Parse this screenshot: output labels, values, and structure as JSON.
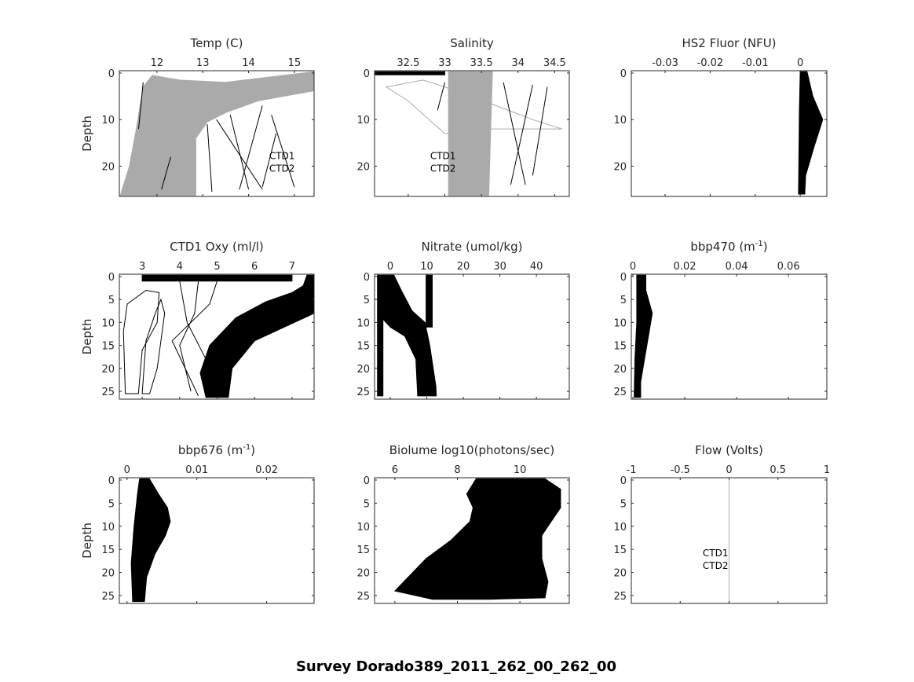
{
  "figure_title": "Survey Dorado389_2011_262_00_262_00",
  "colors": {
    "ctd1": "#000000",
    "ctd2": "#aaaaaa",
    "axis": "#262626"
  },
  "chart_data": [
    {
      "type": "scatter",
      "title": "Temp (C)",
      "title_sup": "",
      "title_end": "",
      "ylabel": "Depth",
      "xlim": [
        11.18,
        15.43
      ],
      "ylim": [
        -0.5,
        26.5
      ],
      "xticks": [
        "12",
        "13",
        "14",
        "15"
      ],
      "yticks": [
        "0",
        "10",
        "20"
      ],
      "legend": [
        "CTD1",
        "CTD2"
      ],
      "legend_pos": [
        14.45,
        18.5
      ],
      "series": [
        {
          "name": "CTD2",
          "color": "#aaaaaa",
          "envelope": [
            [
              11.2,
              26.3
            ],
            [
              11.4,
              20
            ],
            [
              11.55,
              12
            ],
            [
              11.7,
              3
            ],
            [
              11.9,
              0.5
            ],
            [
              12.5,
              1.5
            ],
            [
              13.5,
              2
            ],
            [
              15.43,
              -0.3
            ],
            [
              15.43,
              3.8
            ],
            [
              14.2,
              6
            ],
            [
              13.5,
              8.5
            ],
            [
              13.1,
              10.5
            ],
            [
              12.85,
              14
            ],
            [
              12.85,
              26.3
            ]
          ]
        },
        {
          "name": "CTD1",
          "color": "#000000",
          "lines": [
            [
              [
                13.1,
                11
              ],
              [
                13.2,
                25.5
              ]
            ],
            [
              [
                13.3,
                10
              ],
              [
                14.3,
                25
              ]
            ],
            [
              [
                13.6,
                9
              ],
              [
                14.0,
                25
              ]
            ],
            [
              [
                14.3,
                7
              ],
              [
                13.8,
                25
              ]
            ],
            [
              [
                14.5,
                9
              ],
              [
                15.0,
                24.5
              ]
            ],
            [
              [
                14.3,
                24.5
              ],
              [
                14.6,
                13
              ]
            ],
            [
              [
                11.7,
                2
              ],
              [
                11.6,
                12
              ]
            ],
            [
              [
                12.3,
                18
              ],
              [
                12.1,
                25
              ]
            ]
          ]
        }
      ]
    },
    {
      "type": "scatter",
      "title": "Salinity",
      "title_sup": "",
      "title_end": "",
      "ylabel": "",
      "xlim": [
        32.04,
        34.7
      ],
      "ylim": [
        -0.5,
        26.5
      ],
      "xticks": [
        "32.5",
        "33",
        "33.5",
        "34",
        "34.5"
      ],
      "yticks": [
        "0",
        "10",
        "20"
      ],
      "legend": [
        "CTD1",
        "CTD2"
      ],
      "legend_pos": [
        32.8,
        18.5
      ],
      "series": [
        {
          "name": "CTD2",
          "color": "#aaaaaa",
          "envelope": [
            [
              33.05,
              -0.3
            ],
            [
              33.65,
              -0.3
            ],
            [
              33.6,
              26.3
            ],
            [
              33.05,
              26.3
            ]
          ]
        },
        {
          "name": "CTD2",
          "color": "#aaaaaa",
          "outline": [
            [
              32.2,
              3
            ],
            [
              32.7,
              1.5
            ],
            [
              33.2,
              4
            ],
            [
              34.2,
              10
            ],
            [
              34.6,
              12
            ],
            [
              33.6,
              12
            ],
            [
              33.0,
              13
            ],
            [
              32.5,
              6
            ]
          ]
        },
        {
          "name": "CTD1",
          "color": "#000000",
          "envelope": [
            [
              32.05,
              -0.3
            ],
            [
              33.0,
              -0.3
            ],
            [
              33.0,
              0.4
            ],
            [
              32.05,
              0.4
            ]
          ]
        },
        {
          "name": "CTD1",
          "color": "#000000",
          "lines": [
            [
              [
                33.8,
                2
              ],
              [
                34.1,
                24
              ]
            ],
            [
              [
                34.2,
                2.5
              ],
              [
                33.9,
                24
              ]
            ],
            [
              [
                34.4,
                3
              ],
              [
                34.2,
                22
              ]
            ],
            [
              [
                33.0,
                2
              ],
              [
                32.9,
                8
              ]
            ]
          ]
        }
      ]
    },
    {
      "type": "scatter",
      "title": "HS2 Fluor (NFU)",
      "title_sup": "",
      "title_end": "",
      "ylabel": "",
      "xlim": [
        -0.0375,
        0.0059
      ],
      "ylim": [
        -0.5,
        26.5
      ],
      "xticks": [
        "-0.03",
        "-0.02",
        "-0.01",
        "0"
      ],
      "yticks": [
        "0",
        "10",
        "20"
      ],
      "legend": [],
      "series": [
        {
          "name": "CTD1",
          "color": "#000000",
          "envelope": [
            [
              0.0,
              -0.3
            ],
            [
              0.0015,
              -0.3
            ],
            [
              0.0028,
              5
            ],
            [
              0.005,
              10
            ],
            [
              0.003,
              16
            ],
            [
              0.0012,
              22
            ],
            [
              0.001,
              26
            ],
            [
              -0.0004,
              26
            ],
            [
              -0.0003,
              18
            ],
            [
              -0.0002,
              8
            ]
          ]
        }
      ]
    },
    {
      "type": "scatter",
      "title": "CTD1 Oxy (ml/l)",
      "title_sup": "",
      "title_end": "",
      "ylabel": "Depth",
      "xlim": [
        2.39,
        7.59
      ],
      "ylim": [
        -0.5,
        26.7
      ],
      "xticks": [
        "3",
        "4",
        "5",
        "6",
        "7"
      ],
      "yticks": [
        "0",
        "5",
        "10",
        "15",
        "20",
        "25"
      ],
      "legend": [],
      "series": [
        {
          "name": "CTD1",
          "color": "#000000",
          "envelope": [
            [
              4.7,
              26.3
            ],
            [
              4.55,
              21
            ],
            [
              4.8,
              15
            ],
            [
              5.5,
              9
            ],
            [
              6.3,
              5.5
            ],
            [
              7.0,
              3.5
            ],
            [
              7.3,
              2
            ],
            [
              7.4,
              -0.3
            ],
            [
              7.6,
              -0.3
            ],
            [
              7.59,
              8
            ],
            [
              6.8,
              11
            ],
            [
              6.0,
              14
            ],
            [
              5.4,
              20
            ],
            [
              5.3,
              26.3
            ]
          ]
        },
        {
          "name": "CTD1",
          "color": "#000000",
          "envelope": [
            [
              3.0,
              -0.3
            ],
            [
              7.0,
              -0.3
            ],
            [
              7.0,
              1
            ],
            [
              3.0,
              1
            ]
          ]
        },
        {
          "name": "CTD1",
          "color": "#000000",
          "outline": [
            [
              2.55,
              25.5
            ],
            [
              2.5,
              12
            ],
            [
              2.6,
              6
            ],
            [
              3.1,
              3
            ],
            [
              3.45,
              3.5
            ],
            [
              3.4,
              10
            ],
            [
              3.0,
              16
            ],
            [
              2.9,
              25.5
            ]
          ]
        },
        {
          "name": "CTD1",
          "color": "#000000",
          "outline": [
            [
              3.0,
              25.5
            ],
            [
              3.1,
              14
            ],
            [
              3.35,
              8
            ],
            [
              3.5,
              5
            ],
            [
              3.6,
              8
            ],
            [
              3.4,
              20
            ],
            [
              3.2,
              25.5
            ]
          ]
        },
        {
          "name": "CTD1",
          "color": "#000000",
          "lines": [
            [
              [
                4.0,
                1
              ],
              [
                4.2,
                10
              ],
              [
                4.7,
                18
              ],
              [
                4.8,
                26
              ]
            ],
            [
              [
                4.5,
                1
              ],
              [
                4.4,
                8
              ],
              [
                4.0,
                15
              ],
              [
                4.3,
                25
              ]
            ],
            [
              [
                5.0,
                1
              ],
              [
                4.8,
                6
              ],
              [
                3.8,
                14
              ],
              [
                4.5,
                26
              ]
            ]
          ]
        }
      ]
    },
    {
      "type": "scatter",
      "title": "Nitrate (umol/kg)",
      "title_sup": "",
      "title_end": "",
      "ylabel": "",
      "xlim": [
        -4.3,
        49.0
      ],
      "ylim": [
        -0.5,
        26.7
      ],
      "xticks": [
        "0",
        "10",
        "20",
        "30",
        "40"
      ],
      "yticks": [
        "0",
        "5",
        "10",
        "15",
        "20",
        "25"
      ],
      "legend": [],
      "series": [
        {
          "name": "CTD1",
          "color": "#000000",
          "envelope": [
            [
              -3.5,
              -0.3
            ],
            [
              1,
              -0.3
            ],
            [
              3,
              3
            ],
            [
              6,
              7.5
            ],
            [
              9.5,
              10
            ],
            [
              10.8,
              15
            ],
            [
              12.5,
              24
            ],
            [
              12.6,
              26
            ],
            [
              7.5,
              26
            ],
            [
              7,
              18
            ],
            [
              4,
              13
            ],
            [
              0,
              11
            ],
            [
              -3.5,
              8
            ]
          ]
        },
        {
          "name": "CTD1",
          "color": "#000000",
          "envelope": [
            [
              9.8,
              -0.3
            ],
            [
              11.5,
              -0.3
            ],
            [
              11.5,
              11
            ],
            [
              9.8,
              11
            ]
          ]
        },
        {
          "name": "CTD1",
          "color": "#000000",
          "envelope": [
            [
              -3.5,
              8
            ],
            [
              -2,
              8
            ],
            [
              -2,
              26
            ],
            [
              -3.5,
              26
            ]
          ]
        }
      ]
    },
    {
      "type": "scatter",
      "title": "bbp470 (m",
      "title_sup": "-1",
      "title_end": ")",
      "ylabel": "",
      "xlim": [
        -0.0006,
        0.0748
      ],
      "ylim": [
        -0.5,
        26.7
      ],
      "xticks": [
        "0",
        "0.02",
        "0.04",
        "0.06"
      ],
      "yticks": [
        "0",
        "5",
        "10",
        "15",
        "20",
        "25"
      ],
      "legend": [],
      "series": [
        {
          "name": "CTD1",
          "color": "#000000",
          "envelope": [
            [
              0.0015,
              -0.3
            ],
            [
              0.005,
              -0.3
            ],
            [
              0.005,
              3
            ],
            [
              0.0075,
              8
            ],
            [
              0.006,
              13
            ],
            [
              0.0045,
              18
            ],
            [
              0.003,
              23
            ],
            [
              0.003,
              26.3
            ],
            [
              0.0005,
              26.3
            ],
            [
              0.0008,
              18
            ],
            [
              0.0015,
              10
            ]
          ]
        }
      ]
    },
    {
      "type": "scatter",
      "title": "bbp676 (m",
      "title_sup": "-1",
      "title_end": ")",
      "ylabel": "Depth",
      "xlim": [
        -0.0011,
        0.0268
      ],
      "ylim": [
        -0.5,
        26.7
      ],
      "xticks": [
        "0",
        "0.01",
        "0.02"
      ],
      "yticks": [
        "0",
        "5",
        "10",
        "15",
        "20",
        "25"
      ],
      "legend": [],
      "series": [
        {
          "name": "CTD1",
          "color": "#000000",
          "envelope": [
            [
              0.0018,
              -0.3
            ],
            [
              0.0032,
              -0.3
            ],
            [
              0.0045,
              3
            ],
            [
              0.0058,
              6
            ],
            [
              0.0062,
              9
            ],
            [
              0.0055,
              12
            ],
            [
              0.004,
              16
            ],
            [
              0.0028,
              21
            ],
            [
              0.0025,
              26.3
            ],
            [
              0.0008,
              26.3
            ],
            [
              0.0006,
              18
            ],
            [
              0.001,
              10
            ],
            [
              0.0015,
              3
            ]
          ]
        }
      ]
    },
    {
      "type": "scatter",
      "title": "Biolume log10(photons/sec)",
      "title_sup": "",
      "title_end": "",
      "ylabel": "",
      "xlim": [
        5.35,
        11.58
      ],
      "ylim": [
        -0.5,
        26.7
      ],
      "xticks": [
        "6",
        "8",
        "10"
      ],
      "yticks": [
        "0",
        "5",
        "10",
        "15",
        "20",
        "25"
      ],
      "legend": [],
      "series": [
        {
          "name": "CTD1",
          "color": "#000000",
          "envelope": [
            [
              8.6,
              -0.3
            ],
            [
              10.8,
              -0.3
            ],
            [
              11.3,
              2
            ],
            [
              11.3,
              6
            ],
            [
              11.0,
              9
            ],
            [
              10.7,
              12
            ],
            [
              10.7,
              17
            ],
            [
              10.9,
              22
            ],
            [
              10.8,
              25.5
            ],
            [
              9,
              25.8
            ],
            [
              7.2,
              25.8
            ],
            [
              6.0,
              24
            ],
            [
              7.0,
              17
            ],
            [
              7.8,
              13
            ],
            [
              8.4,
              9
            ],
            [
              8.5,
              6
            ],
            [
              8.3,
              3
            ]
          ]
        }
      ]
    },
    {
      "type": "scatter",
      "title": "Flow (Volts)",
      "title_sup": "",
      "title_end": "",
      "ylabel": "",
      "xlim": [
        -1,
        1
      ],
      "ylim": [
        -0.5,
        26.7
      ],
      "xticks": [
        "-1",
        "-0.5",
        "0",
        "0.5",
        "1"
      ],
      "yticks": [
        "0",
        "5",
        "10",
        "15",
        "20",
        "25"
      ],
      "legend": [
        "CTD1",
        "CTD2"
      ],
      "legend_pos": [
        -0.27,
        16.5
      ],
      "series": [
        {
          "name": "CTD2",
          "color": "#aaaaaa",
          "lines": [
            [
              [
                0,
                -0.5
              ],
              [
                0,
                26.7
              ]
            ]
          ]
        }
      ]
    }
  ]
}
